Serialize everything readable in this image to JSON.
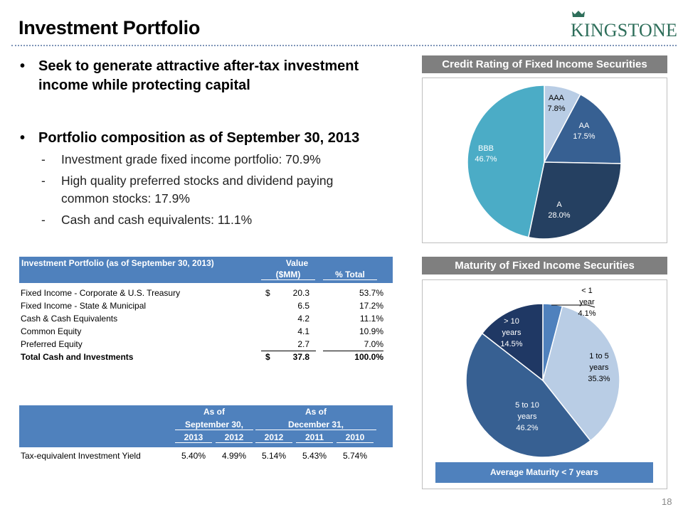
{
  "header": {
    "title": "Investment Portfolio",
    "logo_text": "KINGSTONE",
    "brand_color": "#2e6e5a"
  },
  "bullets": [
    {
      "text": "Seek to generate attractive after-tax investment income while protecting capital",
      "lines": [
        "Seek to generate attractive after-tax investment",
        "income while protecting capital"
      ],
      "subitems": []
    },
    {
      "text": "Portfolio composition as of September 30, 2013",
      "lines": [
        "Portfolio composition as of September 30, 2013"
      ],
      "subitems": [
        {
          "lines": [
            "Investment grade fixed income portfolio: 70.9%"
          ]
        },
        {
          "lines": [
            "High quality preferred  stocks and dividend paying",
            "common stocks: 17.9%"
          ]
        },
        {
          "lines": [
            "Cash and cash equivalents: 11.1%"
          ]
        }
      ]
    }
  ],
  "portfolio_table": {
    "header": {
      "label": "Investment Portfolio (as of September 30, 2013)",
      "value_line1": "Value",
      "value_line2": "($MM)",
      "pct": "% Total"
    },
    "rows": [
      {
        "label": "Fixed Income - Corporate & U.S. Treasury",
        "currency": "$",
        "value": "20.3",
        "pct": "53.7%"
      },
      {
        "label": "Fixed Income - State & Municipal",
        "currency": "",
        "value": "6.5",
        "pct": "17.2%"
      },
      {
        "label": "Cash & Cash Equivalents",
        "currency": "",
        "value": "4.2",
        "pct": "11.1%"
      },
      {
        "label": "Common Equity",
        "currency": "",
        "value": "4.1",
        "pct": "10.9%"
      },
      {
        "label": "Preferred Equity",
        "currency": "",
        "value": "2.7",
        "pct": "7.0%"
      }
    ],
    "total": {
      "label": "Total Cash and Investments",
      "currency": "$",
      "value": "37.8",
      "pct": "100.0%"
    },
    "header_color": "#4f81bd"
  },
  "yield_table": {
    "group1": {
      "line1": "As of",
      "line2": "September 30,"
    },
    "group2": {
      "line1": "As of",
      "line2": "December 31,"
    },
    "years": [
      "2013",
      "2012",
      "2012",
      "2011",
      "2010"
    ],
    "row": {
      "label": "Tax-equivalent Investment Yield",
      "values": [
        "5.40%",
        "4.99%",
        "5.14%",
        "5.43%",
        "5.74%"
      ]
    }
  },
  "credit_panel": {
    "title": "Credit Rating of Fixed Income Securities"
  },
  "maturity_panel": {
    "title": "Maturity of Fixed Income Securities",
    "footer": "Average Maturity < 7 years"
  },
  "page_number": "18",
  "chart_data": [
    {
      "type": "pie",
      "title": "Credit Rating of Fixed Income Securities",
      "categories": [
        "AAA",
        "AA",
        "A",
        "BBB"
      ],
      "values": [
        7.8,
        17.5,
        28.0,
        46.7
      ],
      "labels": [
        "7.8%",
        "17.5%",
        "28.0%",
        "46.7%"
      ],
      "colors": [
        "#b9cde5",
        "#376092",
        "#254061",
        "#4bacc6"
      ],
      "label_colors": [
        "#000000",
        "#ffffff",
        "#ffffff",
        "#ffffff"
      ],
      "start": "12 o'clock, clockwise",
      "legend": "none (data labels)"
    },
    {
      "type": "pie",
      "title": "Maturity of Fixed Income Securities",
      "categories": [
        "< 1 year",
        "1 to 5 years",
        "5 to 10 years",
        "> 10 years"
      ],
      "category_lines": [
        [
          "< 1",
          "year"
        ],
        [
          "1 to 5",
          "years"
        ],
        [
          "5 to 10",
          "years"
        ],
        [
          "> 10",
          "years"
        ]
      ],
      "values": [
        4.1,
        35.3,
        46.2,
        14.5
      ],
      "labels": [
        "4.1%",
        "35.3%",
        "46.2%",
        "14.5%"
      ],
      "colors": [
        "#4f81bd",
        "#b9cde5",
        "#376092",
        "#1f3864"
      ],
      "label_colors": [
        "#000000",
        "#000000",
        "#ffffff",
        "#ffffff"
      ],
      "start": "12 o'clock, clockwise",
      "legend": "none (data labels)"
    }
  ]
}
